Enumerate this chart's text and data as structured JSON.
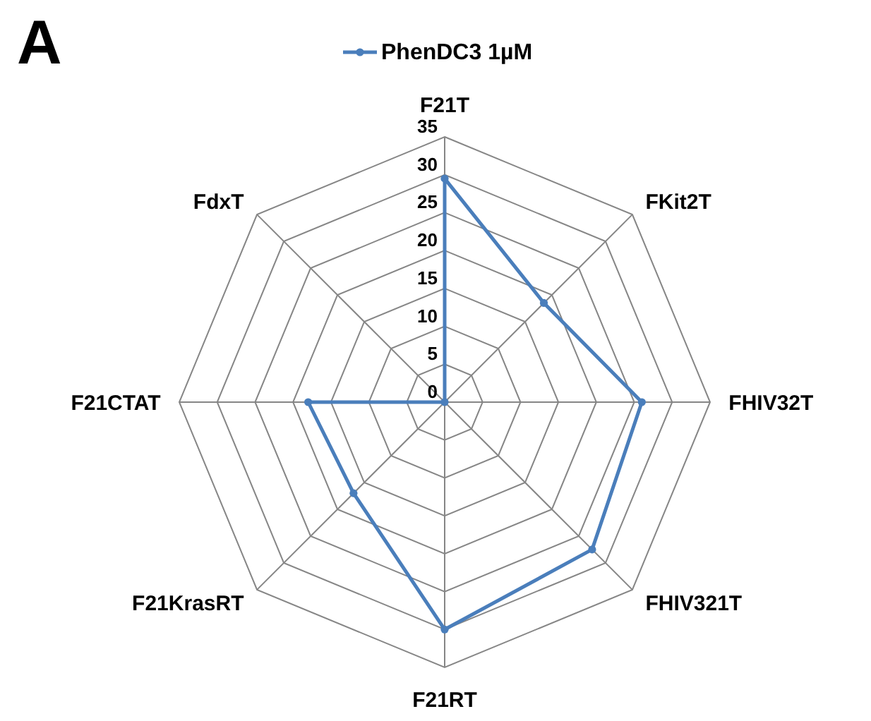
{
  "chart_data": {
    "type": "radar",
    "annotations": [
      "A"
    ],
    "categories": [
      "F21T",
      "FKit2T",
      "FHIV32T",
      "FHIV321T",
      "F21RT",
      "F21KrasRT",
      "F21CTAT",
      "FdxT"
    ],
    "series": [
      {
        "name": "PhenDC3 1µM",
        "color": "#4a7ebb",
        "values": [
          29.5,
          18.5,
          26,
          27.5,
          30,
          17,
          18,
          0
        ]
      }
    ],
    "ylim": [
      0,
      35
    ],
    "yticks": [
      0,
      5,
      10,
      15,
      20,
      25,
      30,
      35
    ],
    "grid": true,
    "legend": "top",
    "marker": "circle",
    "line_style": "solid"
  }
}
